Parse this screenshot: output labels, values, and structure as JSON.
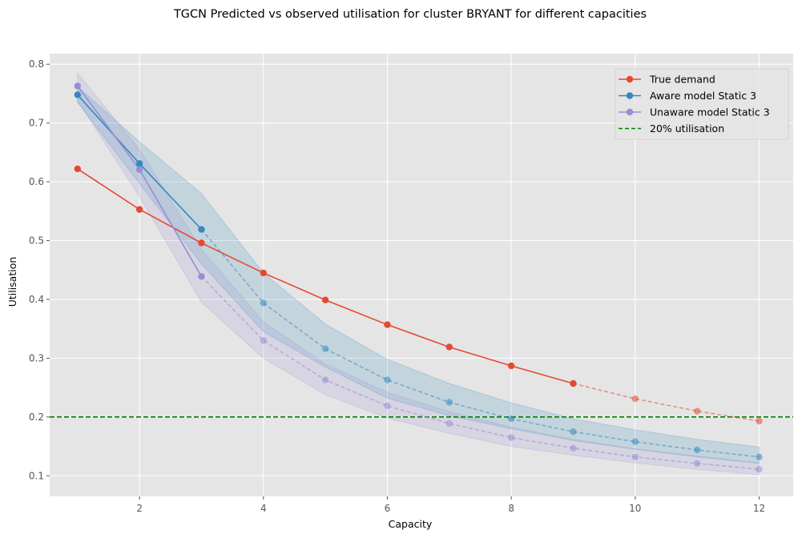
{
  "chart_data": {
    "type": "line",
    "title": "TGCN Predicted vs observed utilisation for cluster BRYANT for different capacities",
    "xlabel": "Capacity",
    "ylabel": "Utilisation",
    "xlim": [
      0.55,
      12.55
    ],
    "ylim": [
      0.065,
      0.818
    ],
    "xticks": [
      2,
      4,
      6,
      8,
      10,
      12
    ],
    "yticks": [
      0.1,
      0.2,
      0.3,
      0.4,
      0.5,
      0.6,
      0.7,
      0.8
    ],
    "grid": true,
    "legend_position": "top-right",
    "x": [
      1,
      2,
      3,
      4,
      5,
      6,
      7,
      8,
      9,
      10,
      11,
      12
    ],
    "colors": {
      "true_demand": "#E24A33",
      "aware": "#348ABD",
      "unaware": "#988ED5",
      "threshold": "#008000",
      "background": "#E5E5E5",
      "grid": "#FFFFFF"
    },
    "series": [
      {
        "name": "True demand",
        "values": [
          0.622,
          0.553,
          0.496,
          0.445,
          0.399,
          0.357,
          0.319,
          0.287,
          0.257,
          0.231,
          0.21,
          0.193
        ],
        "solid_until": 9
      },
      {
        "name": "Aware model Static 3",
        "values": [
          0.748,
          0.631,
          0.519,
          0.394,
          0.316,
          0.263,
          0.225,
          0.197,
          0.175,
          0.158,
          0.144,
          0.132
        ],
        "lower": [
          0.735,
          0.597,
          0.46,
          0.345,
          0.285,
          0.232,
          0.202,
          0.18,
          0.16,
          0.145,
          0.132,
          0.121
        ],
        "upper": [
          0.762,
          0.668,
          0.58,
          0.445,
          0.358,
          0.298,
          0.257,
          0.224,
          0.197,
          0.178,
          0.162,
          0.149
        ],
        "solid_until": 3
      },
      {
        "name": "Unaware model Static 3",
        "values": [
          0.763,
          0.621,
          0.439,
          0.33,
          0.263,
          0.219,
          0.189,
          0.165,
          0.147,
          0.132,
          0.121,
          0.111
        ],
        "lower": [
          0.738,
          0.575,
          0.395,
          0.3,
          0.238,
          0.198,
          0.172,
          0.15,
          0.135,
          0.122,
          0.111,
          0.102
        ],
        "upper": [
          0.785,
          0.655,
          0.485,
          0.362,
          0.29,
          0.242,
          0.209,
          0.183,
          0.162,
          0.146,
          0.134,
          0.122
        ],
        "solid_until": 3
      }
    ],
    "threshold": {
      "name": "20% utilisation",
      "value": 0.2
    }
  }
}
